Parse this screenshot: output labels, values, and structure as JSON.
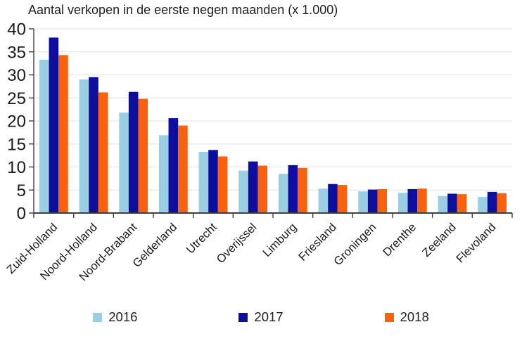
{
  "chart_data": {
    "type": "bar",
    "title": "Aantal verkopen in de eerste negen maanden (x 1.000)",
    "xlabel": "",
    "ylabel": "",
    "categories": [
      "Zuid-Holland",
      "Noord-Holland",
      "Noord-Brabant",
      "Gelderland",
      "Utrecht",
      "Overijssel",
      "Limburg",
      "Friesland",
      "Groningen",
      "Drenthe",
      "Zeeland",
      "Flevoland"
    ],
    "series": [
      {
        "name": "2016",
        "color": "#9ACFE3",
        "values": [
          33.3,
          29.0,
          21.8,
          16.9,
          13.3,
          9.2,
          8.5,
          5.3,
          4.7,
          4.4,
          3.7,
          3.5
        ]
      },
      {
        "name": "2017",
        "color": "#0D0D9E",
        "values": [
          38.1,
          29.5,
          26.3,
          20.6,
          13.7,
          11.2,
          10.4,
          6.3,
          5.1,
          5.2,
          4.2,
          4.6
        ]
      },
      {
        "name": "2018",
        "color": "#FA610D",
        "values": [
          34.3,
          26.2,
          24.8,
          19.0,
          12.3,
          10.3,
          9.8,
          6.1,
          5.2,
          5.3,
          4.1,
          4.3
        ]
      }
    ],
    "ylim": [
      0,
      40
    ],
    "yticks": [
      0,
      5,
      10,
      15,
      20,
      25,
      30,
      35,
      40
    ],
    "grid": true,
    "legend_position": "bottom"
  },
  "style_colors": {
    "gridline": "#E6E6E6",
    "axis": "#404040",
    "tick_text": "#1a1a1a"
  }
}
